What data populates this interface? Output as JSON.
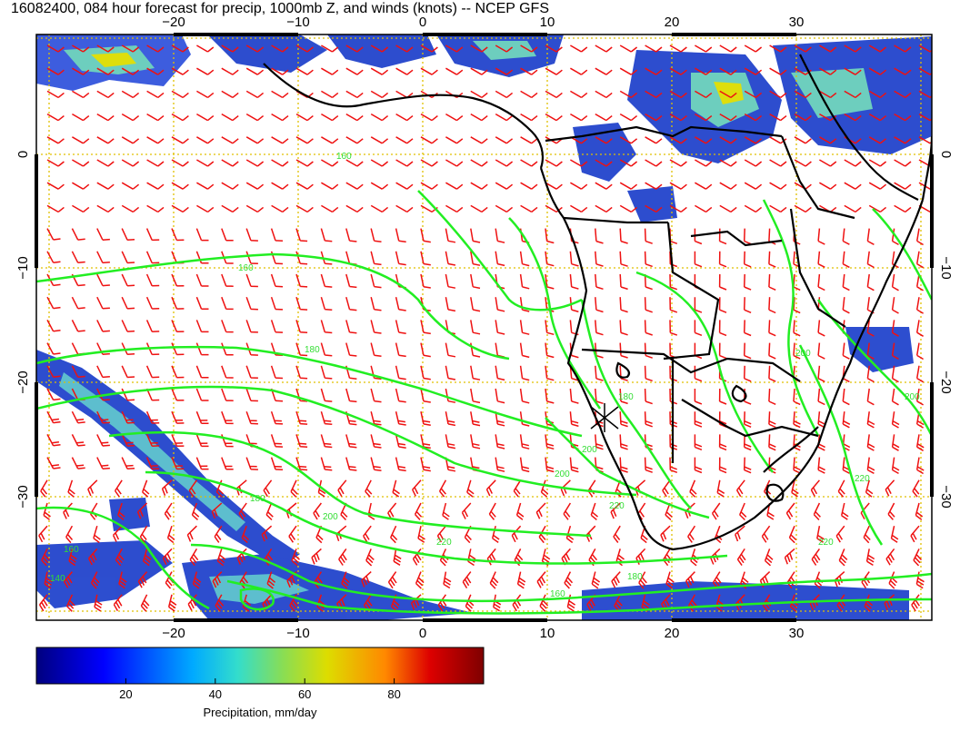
{
  "title": "16082400, 084 hour forecast for precip, 1000mb Z, and winds (knots) -- NCEP GFS",
  "map": {
    "lon_ticks": [
      "−20",
      "−10",
      "0",
      "10",
      "20",
      "30"
    ],
    "lat_ticks": [
      "0",
      "−10",
      "−20",
      "−30"
    ],
    "lon_range": [
      -31,
      40
    ],
    "lat_range": [
      -41,
      11
    ],
    "contour_color": "#22ee22",
    "barb_color": "#ee1111",
    "coast_color": "#000000",
    "grid_color": "#e0c000",
    "contour_labels": [
      "160",
      "160",
      "180",
      "180",
      "200",
      "220",
      "200",
      "220",
      "180",
      "160",
      "140",
      "200",
      "220",
      "200",
      "180",
      "200",
      "220",
      "160"
    ]
  },
  "colorbar": {
    "label": "Precipitation, mm/day",
    "ticks": [
      "20",
      "40",
      "60",
      "80"
    ],
    "tick_values": [
      20,
      40,
      60,
      80
    ],
    "range": [
      0,
      100
    ],
    "colors": [
      "#00007f",
      "#0000ff",
      "#00aaff",
      "#33ddcc",
      "#88dd55",
      "#dddd00",
      "#ff8800",
      "#dd0000",
      "#7f0000"
    ]
  }
}
